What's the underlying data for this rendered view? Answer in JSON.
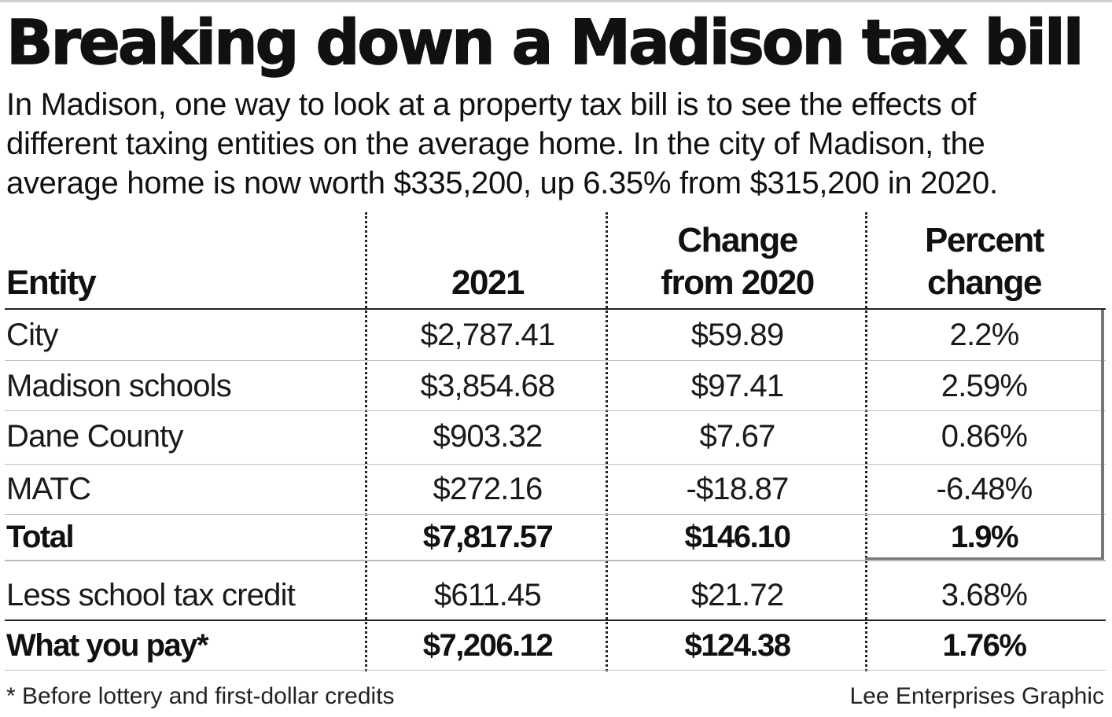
{
  "title": "Breaking down a Madison tax bill",
  "intro": {
    "line1": "In Madison, one way to look at a property tax bill is to see the effects of",
    "line2": "different taxing entities on the average home. In the city of Madison, the",
    "line3": "average home is now worth $335,200, up 6.35% from $315,200 in 2020."
  },
  "table": {
    "headers": {
      "entity": "Entity",
      "year": "2021",
      "change_line1": "Change",
      "change_line2": "from 2020",
      "pct_line1": "Percent",
      "pct_line2": "change"
    },
    "rows": [
      {
        "entity": "City",
        "value_2021": "$2,787.41",
        "change": "$59.89",
        "pct": "2.2%"
      },
      {
        "entity": "Madison schools",
        "value_2021": "$3,854.68",
        "change": "$97.41",
        "pct": "2.59%"
      },
      {
        "entity": "Dane County",
        "value_2021": "$903.32",
        "change": "$7.67",
        "pct": "0.86%"
      },
      {
        "entity": "MATC",
        "value_2021": "$272.16",
        "change": "-$18.87",
        "pct": "-6.48%"
      },
      {
        "entity": "Total",
        "value_2021": "$7,817.57",
        "change": "$146.10",
        "pct": "1.9%"
      },
      {
        "entity": "Less school tax credit",
        "value_2021": "$611.45",
        "change": "$21.72",
        "pct": "3.68%"
      },
      {
        "entity": "What you pay*",
        "value_2021": "$7,206.12",
        "change": "$124.38",
        "pct": "1.76%"
      }
    ]
  },
  "footnote": "* Before lottery and first-dollar credits",
  "credit": "Lee Enterprises Graphic"
}
